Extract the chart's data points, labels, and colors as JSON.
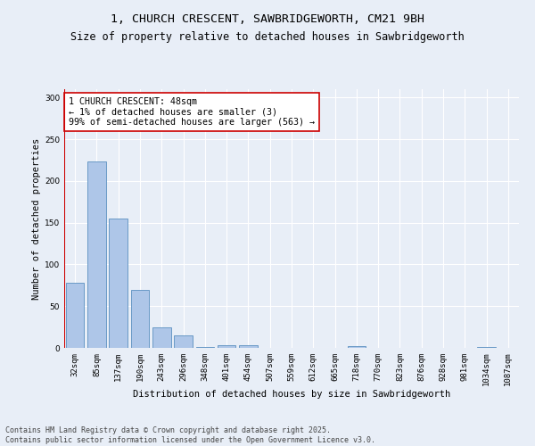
{
  "title_line1": "1, CHURCH CRESCENT, SAWBRIDGEWORTH, CM21 9BH",
  "title_line2": "Size of property relative to detached houses in Sawbridgeworth",
  "xlabel": "Distribution of detached houses by size in Sawbridgeworth",
  "ylabel": "Number of detached properties",
  "categories": [
    "32sqm",
    "85sqm",
    "137sqm",
    "190sqm",
    "243sqm",
    "296sqm",
    "348sqm",
    "401sqm",
    "454sqm",
    "507sqm",
    "559sqm",
    "612sqm",
    "665sqm",
    "718sqm",
    "770sqm",
    "823sqm",
    "876sqm",
    "928sqm",
    "981sqm",
    "1034sqm",
    "1087sqm"
  ],
  "values": [
    78,
    223,
    155,
    70,
    25,
    15,
    1,
    3,
    3,
    0,
    0,
    0,
    0,
    2,
    0,
    0,
    0,
    0,
    0,
    1,
    0
  ],
  "bar_color": "#aec6e8",
  "bar_edge_color": "#5a8fc0",
  "vline_color": "#cc0000",
  "annotation_text": "1 CHURCH CRESCENT: 48sqm\n← 1% of detached houses are smaller (3)\n99% of semi-detached houses are larger (563) →",
  "annotation_box_color": "#ffffff",
  "annotation_box_edge_color": "#cc0000",
  "ylim": [
    0,
    310
  ],
  "yticks": [
    0,
    50,
    100,
    150,
    200,
    250,
    300
  ],
  "background_color": "#e8eef7",
  "grid_color": "#ffffff",
  "footer_line1": "Contains HM Land Registry data © Crown copyright and database right 2025.",
  "footer_line2": "Contains public sector information licensed under the Open Government Licence v3.0.",
  "title_fontsize": 9.5,
  "subtitle_fontsize": 8.5,
  "axis_label_fontsize": 7.5,
  "tick_fontsize": 6.5,
  "annotation_fontsize": 7.2,
  "footer_fontsize": 6.0
}
